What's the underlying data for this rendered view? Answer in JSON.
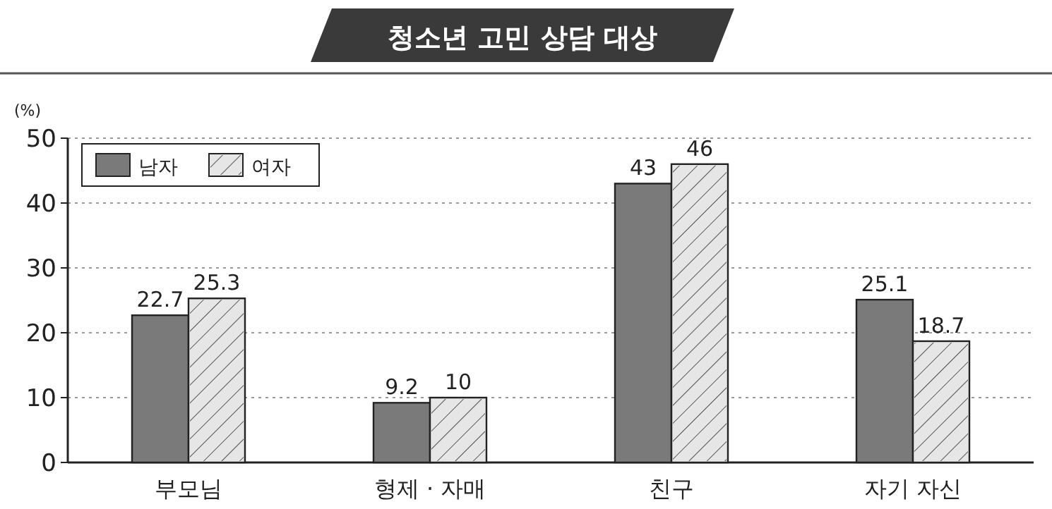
{
  "chart_data": {
    "type": "bar",
    "title": "청소년 고민 상담 대상",
    "ylabel": "(%)",
    "categories": [
      "부모님",
      "형제 · 자매",
      "친구",
      "자기 자신"
    ],
    "series": [
      {
        "name": "남자",
        "color": "#7a7a7a",
        "values": [
          22.7,
          9.2,
          43,
          25.1
        ]
      },
      {
        "name": "여자",
        "color": "#e6e6e6",
        "values": [
          25.3,
          10,
          46,
          18.7
        ]
      }
    ],
    "ylim": [
      0,
      50
    ],
    "yticks": [
      0,
      10,
      20,
      30,
      40,
      50
    ],
    "grid": "y",
    "legend": "top left",
    "data_labels": true
  }
}
